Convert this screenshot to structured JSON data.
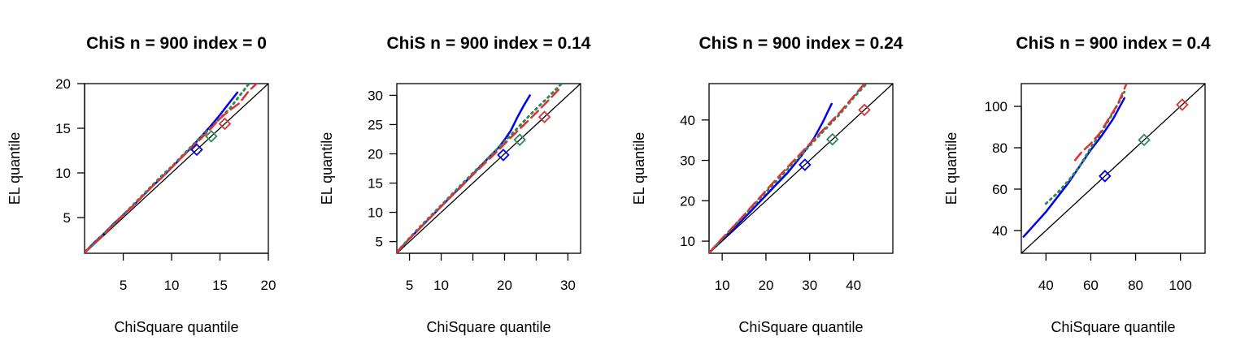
{
  "chart_data": [
    {
      "type": "line",
      "title": "ChiS n = 900 index = 0",
      "xlabel": "ChiSquare quantile",
      "ylabel": "EL quantile",
      "xlim": [
        1,
        20
      ],
      "ylim": [
        1,
        20
      ],
      "xticks": [
        5,
        10,
        15,
        20
      ],
      "yticks": [
        5,
        10,
        15,
        20
      ],
      "reference_line": "y = x",
      "series": [
        {
          "color": "#0000ee",
          "style": "solid",
          "x": [
            1,
            2,
            3,
            4,
            5,
            6,
            7,
            8,
            9,
            10,
            11,
            12,
            13,
            14,
            15,
            16,
            16.8
          ],
          "y": [
            1.1,
            2.2,
            3.2,
            4.3,
            5.3,
            6.3,
            7.4,
            8.5,
            9.5,
            10.6,
            11.7,
            12.8,
            14.0,
            15.2,
            16.5,
            17.9,
            19.0
          ]
        },
        {
          "color": "#2e8b57",
          "style": "dotted",
          "x": [
            1,
            2,
            3,
            4,
            5,
            6,
            7,
            8,
            9,
            10,
            11,
            12,
            13,
            14,
            15,
            16,
            17,
            18
          ],
          "y": [
            1.1,
            2.1,
            3.2,
            4.2,
            5.3,
            6.4,
            7.5,
            8.6,
            9.7,
            10.7,
            11.8,
            12.9,
            14.0,
            15.0,
            16.1,
            17.2,
            18.6,
            20.0
          ]
        },
        {
          "color": "#dd3333",
          "style": "dashed",
          "x": [
            1,
            2,
            3,
            4,
            5,
            6,
            7,
            8,
            9,
            10,
            11,
            12,
            13,
            14,
            15,
            16,
            17,
            18,
            18.8
          ],
          "y": [
            1.1,
            2.1,
            3.1,
            4.2,
            5.3,
            6.3,
            7.4,
            8.5,
            9.5,
            10.6,
            11.7,
            12.7,
            13.8,
            14.9,
            16.1,
            17.0,
            17.8,
            19.2,
            20.0
          ]
        }
      ],
      "markers": [
        {
          "color": "#0000ee",
          "x": 12.6,
          "y": 12.6
        },
        {
          "color": "#2e8b57",
          "x": 14.1,
          "y": 14.1
        },
        {
          "color": "#dd3333",
          "x": 15.5,
          "y": 15.5
        }
      ]
    },
    {
      "type": "line",
      "title": "ChiS n = 900 index = 0.14",
      "xlabel": "ChiSquare quantile",
      "ylabel": "EL quantile",
      "xlim": [
        3,
        32
      ],
      "ylim": [
        3,
        32
      ],
      "xticks": [
        5,
        10,
        15,
        20,
        25,
        30
      ],
      "xtick_labels": [
        "5",
        "10",
        "",
        "20",
        "",
        "30"
      ],
      "yticks": [
        5,
        10,
        15,
        20,
        25,
        30
      ],
      "reference_line": "y = x",
      "series": [
        {
          "color": "#0000ee",
          "style": "solid",
          "x": [
            3,
            5,
            7,
            9,
            11,
            13,
            15,
            17,
            19,
            20,
            21,
            22,
            23,
            24
          ],
          "y": [
            3.2,
            5.5,
            7.7,
            9.9,
            12.1,
            14.3,
            16.5,
            18.8,
            21.0,
            22.4,
            24.0,
            26.2,
            28.2,
            30.0
          ]
        },
        {
          "color": "#2e8b57",
          "style": "dotted",
          "x": [
            3,
            5,
            7,
            9,
            11,
            13,
            15,
            17,
            19,
            21,
            23,
            25,
            27,
            29
          ],
          "y": [
            3.2,
            5.6,
            7.9,
            10.1,
            12.3,
            14.5,
            16.7,
            18.8,
            21.0,
            23.2,
            25.5,
            27.7,
            29.8,
            32.0
          ]
        },
        {
          "color": "#dd3333",
          "style": "dashed",
          "x": [
            3,
            5,
            7,
            9,
            11,
            13,
            15,
            17,
            19,
            21,
            23,
            25,
            27,
            29
          ],
          "y": [
            3.2,
            5.5,
            7.7,
            9.9,
            12.1,
            14.2,
            16.4,
            18.5,
            20.6,
            22.8,
            24.9,
            27.0,
            29.2,
            31.5
          ]
        }
      ],
      "markers": [
        {
          "color": "#0000ee",
          "x": 19.8,
          "y": 19.8
        },
        {
          "color": "#2e8b57",
          "x": 22.4,
          "y": 22.4
        },
        {
          "color": "#dd3333",
          "x": 26.3,
          "y": 26.3
        }
      ]
    },
    {
      "type": "line",
      "title": "ChiS n = 900 index = 0.24",
      "xlabel": "ChiSquare quantile",
      "ylabel": "EL quantile",
      "xlim": [
        7,
        49
      ],
      "ylim": [
        7,
        49
      ],
      "xticks": [
        10,
        20,
        30,
        40
      ],
      "yticks": [
        10,
        20,
        30,
        40
      ],
      "reference_line": "y = x",
      "series": [
        {
          "color": "#0000ee",
          "style": "solid",
          "x": [
            7,
            10,
            13,
            16,
            19,
            22,
            25,
            28,
            31,
            33,
            35
          ],
          "y": [
            7.1,
            10.5,
            13.5,
            16.8,
            20.2,
            23.6,
            27.0,
            31.0,
            35.5,
            39.5,
            44.0
          ]
        },
        {
          "color": "#2e8b57",
          "style": "dotted",
          "x": [
            7,
            10,
            13,
            16,
            19,
            22,
            25,
            28,
            31,
            34,
            37,
            40,
            43
          ],
          "y": [
            7.1,
            10.6,
            14.1,
            17.5,
            21.0,
            24.4,
            27.9,
            31.3,
            34.8,
            38.2,
            41.6,
            45.5,
            49.0
          ]
        },
        {
          "color": "#dd3333",
          "style": "dashed",
          "x": [
            7,
            10,
            13,
            16,
            19,
            22,
            25,
            28,
            31,
            34,
            37,
            40,
            42.5
          ],
          "y": [
            7.1,
            10.7,
            14.1,
            17.7,
            21.3,
            24.9,
            28.4,
            31.8,
            35.2,
            38.6,
            42.0,
            45.8,
            49.0
          ]
        }
      ],
      "markers": [
        {
          "color": "#0000ee",
          "x": 28.9,
          "y": 28.9
        },
        {
          "color": "#2e8b57",
          "x": 35.2,
          "y": 35.2
        },
        {
          "color": "#dd3333",
          "x": 42.5,
          "y": 42.5
        }
      ]
    },
    {
      "type": "line",
      "title": "ChiS n = 900 index = 0.4",
      "xlabel": "ChiSquare quantile",
      "ylabel": "EL quantile",
      "xlim": [
        29,
        111
      ],
      "ylim": [
        29,
        111
      ],
      "xticks": [
        40,
        60,
        80,
        100
      ],
      "yticks": [
        40,
        60,
        80,
        100
      ],
      "reference_line": "y = x",
      "series": [
        {
          "color": "#0000ee",
          "style": "solid",
          "x": [
            30,
            35,
            40,
            45,
            50,
            55,
            60,
            65,
            70,
            75
          ],
          "y": [
            37,
            43,
            49,
            56,
            63,
            71,
            79,
            86,
            94,
            104
          ]
        },
        {
          "color": "#2e8b57",
          "style": "dotted",
          "x": [
            40,
            45,
            50,
            55,
            60,
            65,
            70,
            75
          ],
          "y": [
            53,
            58,
            64,
            71,
            80,
            88,
            97,
            107
          ]
        },
        {
          "color": "#dd3333",
          "style": "dashed",
          "x": [
            53,
            56,
            60,
            64,
            68,
            72,
            76
          ],
          "y": [
            74,
            78,
            82,
            87,
            94,
            101,
            111
          ]
        }
      ],
      "markers": [
        {
          "color": "#0000ee",
          "x": 66.3,
          "y": 66.3
        },
        {
          "color": "#2e8b57",
          "x": 83.8,
          "y": 83.8
        },
        {
          "color": "#dd3333",
          "x": 100.8,
          "y": 100.8
        }
      ]
    }
  ]
}
